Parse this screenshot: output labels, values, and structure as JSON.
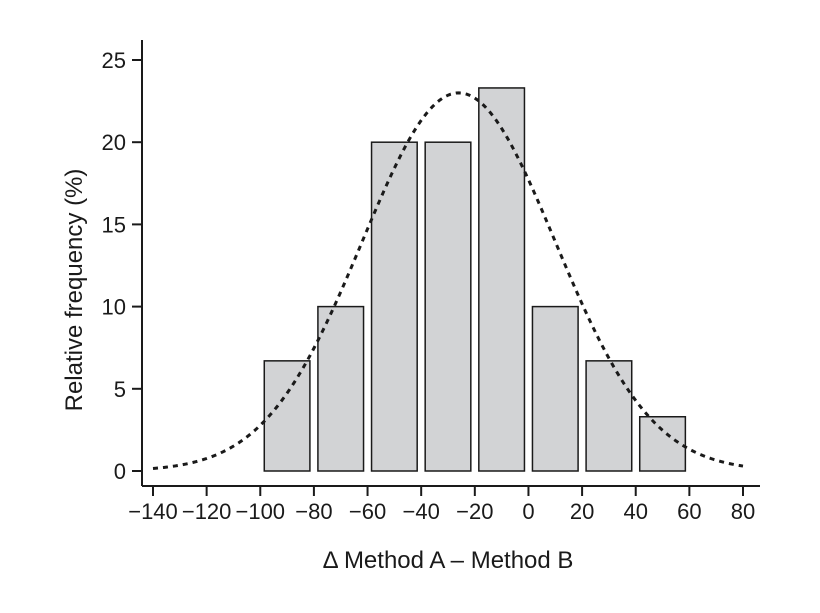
{
  "chart_data": {
    "type": "bar",
    "title": "",
    "xlabel": "Δ Method A – Method B",
    "ylabel": "Relative frequency (%)",
    "xlim": [
      -140,
      80
    ],
    "ylim": [
      0,
      25
    ],
    "x_ticks": [
      -140,
      -120,
      -100,
      -80,
      -60,
      -40,
      -20,
      0,
      20,
      40,
      60,
      80
    ],
    "x_tick_labels": [
      "−140",
      "−120",
      "−100",
      "−80",
      "−60",
      "−40",
      "−20",
      "0",
      "20",
      "40",
      "60",
      "80"
    ],
    "y_ticks": [
      0,
      5,
      10,
      15,
      20,
      25
    ],
    "y_tick_labels": [
      "0",
      "5",
      "10",
      "15",
      "20",
      "25"
    ],
    "bins": [
      {
        "x0": -100,
        "x1": -80,
        "value": 6.7
      },
      {
        "x0": -80,
        "x1": -60,
        "value": 10
      },
      {
        "x0": -60,
        "x1": -40,
        "value": 20
      },
      {
        "x0": -40,
        "x1": -20,
        "value": 20
      },
      {
        "x0": -20,
        "x1": 0,
        "value": 23.3
      },
      {
        "x0": 0,
        "x1": 20,
        "value": 10
      },
      {
        "x0": 20,
        "x1": 40,
        "value": 6.7
      },
      {
        "x0": 40,
        "x1": 60,
        "value": 3.3
      }
    ],
    "normal_curve": {
      "mean": -26,
      "sd": 36,
      "peak": 23
    },
    "bar_fill": "#d2d3d5",
    "bar_stroke": "#1a1a1a",
    "curve_style": "dotted",
    "grid": false,
    "legend": "none"
  }
}
